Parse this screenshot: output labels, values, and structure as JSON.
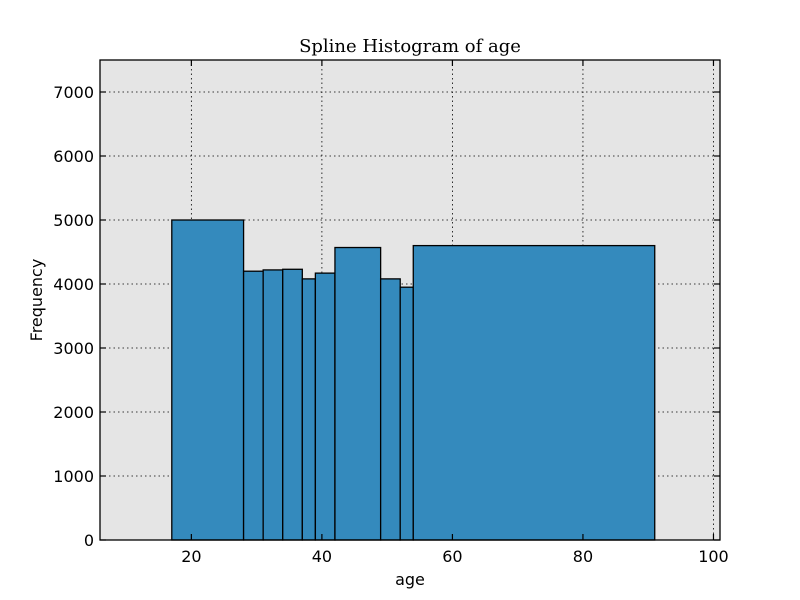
{
  "chart_data": {
    "type": "bar",
    "title": "Spline Histogram of age",
    "xlabel": "age",
    "ylabel": "Frequency",
    "xlim": [
      6,
      101
    ],
    "ylim": [
      0,
      7500
    ],
    "xticks": [
      20,
      40,
      60,
      80,
      100
    ],
    "yticks": [
      0,
      1000,
      2000,
      3000,
      4000,
      5000,
      6000,
      7000
    ],
    "grid": true,
    "background_color": "#e5e5e5",
    "bar_color": "#348abd",
    "bins": [
      {
        "x0": 17,
        "x1": 28,
        "value": 5000
      },
      {
        "x0": 28,
        "x1": 31,
        "value": 4200
      },
      {
        "x0": 31,
        "x1": 34,
        "value": 4220
      },
      {
        "x0": 34,
        "x1": 37,
        "value": 4230
      },
      {
        "x0": 37,
        "x1": 39,
        "value": 4080
      },
      {
        "x0": 39,
        "x1": 42,
        "value": 4170
      },
      {
        "x0": 42,
        "x1": 49,
        "value": 4570
      },
      {
        "x0": 49,
        "x1": 52,
        "value": 4080
      },
      {
        "x0": 52,
        "x1": 54,
        "value": 3950
      },
      {
        "x0": 54,
        "x1": 91,
        "value": 4600
      }
    ]
  }
}
